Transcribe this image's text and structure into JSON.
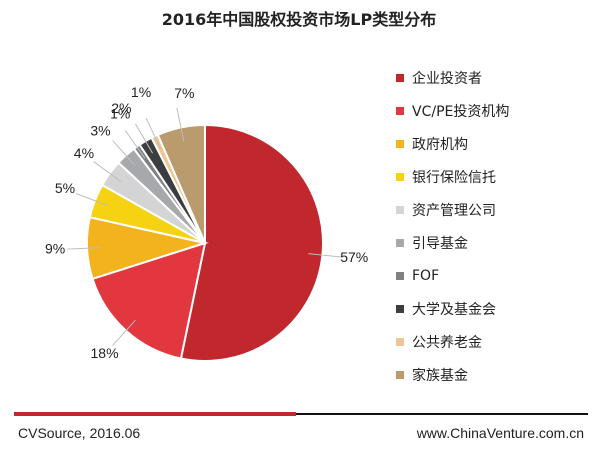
{
  "chart_data": {
    "type": "pie",
    "title": "2016年中国股权投资市场LP类型分布",
    "categories": [
      "企业投资者",
      "VC/PE投资机构",
      "政府机构",
      "银行保险信托",
      "资产管理公司",
      "引导基金",
      "FOF",
      "大学及基金会",
      "公共养老金",
      "家族基金"
    ],
    "values": [
      57,
      18,
      9,
      5,
      4,
      3,
      1,
      2,
      1,
      7
    ],
    "labels": [
      "57%",
      "18%",
      "9%",
      "5%",
      "4%",
      "3%",
      "1%",
      "2%",
      "1%",
      "7%"
    ],
    "colors": [
      "#c0282d",
      "#e2373f",
      "#f2b31d",
      "#f6d312",
      "#d4d4d4",
      "#a7a8ac",
      "#7f8186",
      "#3c3d40",
      "#f0c594",
      "#b99b6d"
    ],
    "legend_position": "right"
  },
  "footer": {
    "source": "CVSource, 2016.06",
    "site": "www.ChinaVenture.com.cn"
  }
}
